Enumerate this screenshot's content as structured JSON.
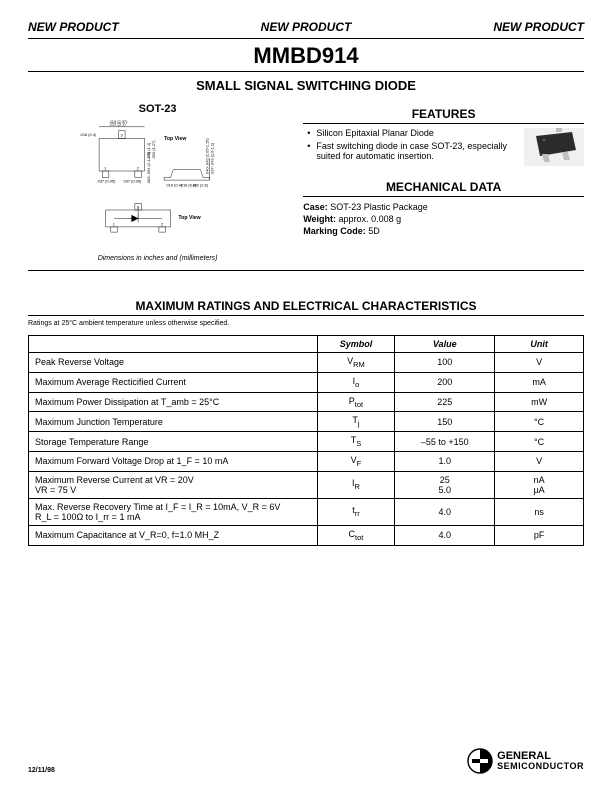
{
  "banner": {
    "text": "NEW PRODUCT"
  },
  "part_number": "MMBD914",
  "subtitle": "SMALL SIGNAL SWITCHING DIODE",
  "package": {
    "label": "SOT-23",
    "top_view": "Top View",
    "dims_note": "Dimensions in inches and (millimeters)",
    "dims": {
      "w1": ".122 (3.1)",
      "w2": ".110 (2.37)",
      "t1": ".018 (0.4)",
      "b1": ".059 (1.4)",
      "b2": ".050 (1.27)",
      "p1": ".037 (0.95)",
      "p2": ".037 (0.95)",
      "h1": ".083-.094 (2.1-2.5)",
      "h2": ".001-.004 (.025-0.1)",
      "l1": ".040-.045 (1.05-1.15)",
      "l2": ".037-.043 (1.0-1.1)",
      "f1": ".016 (0.4)",
      "f2": ".016 (0.4)",
      "c1": ".102 (2.6)",
      "g1": ".003-.006 (0.1-0.13)"
    }
  },
  "features": {
    "heading": "FEATURES",
    "items": [
      "Silicon Epitaxial Planar Diode",
      "Fast switching diode in case SOT-23, especially suited for automatic insertion."
    ]
  },
  "mechanical": {
    "heading": "MECHANICAL DATA",
    "case_label": "Case:",
    "case_value": "SOT-23 Plastic Package",
    "weight_label": "Weight:",
    "weight_value": "approx. 0.008 g",
    "marking_label": "Marking Code:",
    "marking_value": "5D"
  },
  "max_ratings": {
    "heading": "MAXIMUM RATINGS AND ELECTRICAL CHARACTERISTICS",
    "note": "Ratings at 25°C ambient temperature unless otherwise specified.",
    "columns": {
      "param": "",
      "symbol": "Symbol",
      "value": "Value",
      "unit": "Unit"
    },
    "rows": [
      {
        "param": "Peak Reverse Voltage",
        "symbol": "V_RM",
        "value": "100",
        "unit": "V"
      },
      {
        "param": "Maximum Average Recticified Current",
        "symbol": "I_o",
        "value": "200",
        "unit": "mA"
      },
      {
        "param": "Maximum Power Dissipation at T_amb = 25°C",
        "symbol": "P_tot",
        "value": "225",
        "unit": "mW"
      },
      {
        "param": "Maximum Junction Temperature",
        "symbol": "T_j",
        "value": "150",
        "unit": "°C"
      },
      {
        "param": "Storage Temperature Range",
        "symbol": "T_S",
        "value": "–55 to +150",
        "unit": "°C"
      },
      {
        "param": "Maximum Forward Voltage Drop at 1_F = 10 mA",
        "symbol": "V_F",
        "value": "1.0",
        "unit": "V"
      },
      {
        "param": "Maximum Reverse Current at VR = 20V\n                                                VR = 75 V",
        "symbol": "I_R",
        "value": "25\n5.0",
        "unit": "nA\nµA"
      },
      {
        "param": "Max. Reverse Recovery Time at I_F = I_R = 10mA, V_R = 6V\nR_L = 100Ω to I_rr = 1 mA",
        "symbol": "t_rr",
        "value": "4.0",
        "unit": "ns"
      },
      {
        "param": "Maximum Capacitance at V_R=0, f=1.0 MH_Z",
        "symbol": "C_tot",
        "value": "4.0",
        "unit": "pF"
      }
    ]
  },
  "footer": {
    "date": "12/11/98",
    "company1": "GENERAL",
    "company2": "SEMICONDUCTOR"
  },
  "colors": {
    "text": "#000000",
    "bg": "#ffffff",
    "chip_body": "#2b2b2b",
    "chip_lead": "#bfbfbf"
  }
}
